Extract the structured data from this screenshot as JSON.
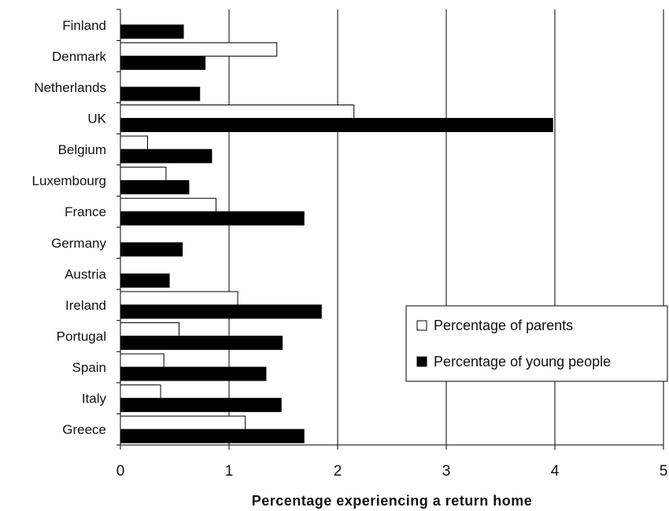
{
  "chart_data": {
    "type": "bar",
    "orientation": "horizontal",
    "categories": [
      "Finland",
      "Denmark",
      "Netherlands",
      "UK",
      "Belgium",
      "Luxembourg",
      "France",
      "Germany",
      "Austria",
      "Ireland",
      "Portugal",
      "Spain",
      "Italy",
      "Greece"
    ],
    "series": [
      {
        "name": "Percentage of parents",
        "color": "#ffffff",
        "values": [
          null,
          1.44,
          null,
          2.15,
          0.25,
          0.42,
          0.88,
          null,
          null,
          1.08,
          0.54,
          0.4,
          0.37,
          1.15
        ]
      },
      {
        "name": "Percentage of young people",
        "color": "#000000",
        "values": [
          0.58,
          0.78,
          0.73,
          3.98,
          0.84,
          0.63,
          1.69,
          0.57,
          0.45,
          1.85,
          1.49,
          1.34,
          1.48,
          1.69
        ]
      }
    ],
    "xlabel": "Percentage experiencing a return home",
    "ylabel": "",
    "title": "",
    "xlim": [
      0,
      5
    ],
    "xticks": [
      "0",
      "1",
      "2",
      "3",
      "4",
      "5"
    ],
    "grid": "vertical",
    "legend_position": "right"
  }
}
